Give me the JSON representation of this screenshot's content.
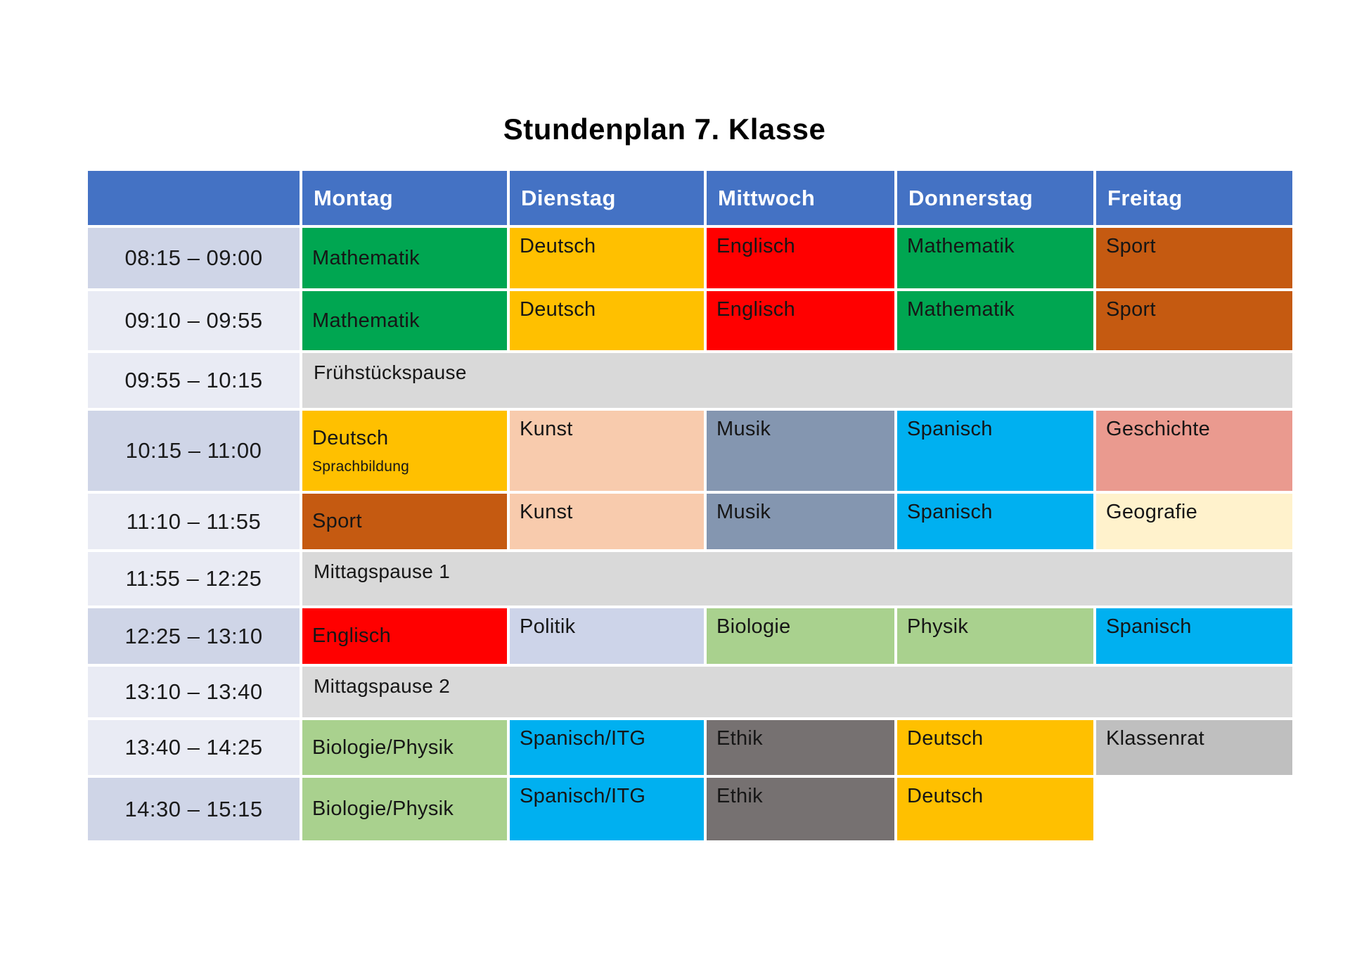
{
  "title": "Stundenplan 7. Klasse",
  "colors": {
    "header_bg": "#4472C4",
    "header_text": "#FFFFFF",
    "time_band": {
      "dark": "#CFD5E7",
      "light": "#E9EBF4"
    },
    "break_bg": "#D9D9D9",
    "subjects": {
      "mathematik": "#00A651",
      "deutsch": "#FFC000",
      "englisch": "#FF0000",
      "sport": "#C55A11",
      "kunst": "#F8CBAD",
      "musik": "#8496B0",
      "spanisch": "#00B0F0",
      "geschichte": "#EA9A8F",
      "geografie": "#FFF2CC",
      "politik": "#CDD4E9",
      "biologie_physik": "#A9D18E",
      "ethik": "#767171",
      "klassenrat": "#BFBFBF"
    }
  },
  "table": {
    "day_headers": [
      "Montag",
      "Dienstag",
      "Mittwoch",
      "Donnerstag",
      "Freitag"
    ],
    "rows": [
      {
        "time": "08:15 – 09:00",
        "band": "dark",
        "type": "lessons",
        "cells": [
          {
            "label": "Mathematik",
            "color": "#00A651",
            "valign": "middle"
          },
          {
            "label": "Deutsch",
            "color": "#FFC000"
          },
          {
            "label": "Englisch",
            "color": "#FF0000"
          },
          {
            "label": "Mathematik",
            "color": "#00A651"
          },
          {
            "label": "Sport",
            "color": "#C55A11"
          }
        ]
      },
      {
        "time": "09:10 – 09:55",
        "band": "light",
        "type": "lessons",
        "cells": [
          {
            "label": "Mathematik",
            "color": "#00A651",
            "valign": "middle"
          },
          {
            "label": "Deutsch",
            "color": "#FFC000"
          },
          {
            "label": "Englisch",
            "color": "#FF0000"
          },
          {
            "label": "Mathematik",
            "color": "#00A651"
          },
          {
            "label": "Sport",
            "color": "#C55A11"
          }
        ]
      },
      {
        "time": "09:55 – 10:15",
        "band": "light",
        "type": "break",
        "label": "Frühstückspause"
      },
      {
        "time": "10:15 – 11:00",
        "band": "dark",
        "type": "lessons",
        "cells": [
          {
            "label": "Deutsch",
            "sub": "Sprachbildung",
            "color": "#FFC000",
            "valign": "middle"
          },
          {
            "label": "Kunst",
            "color": "#F8CBAD"
          },
          {
            "label": "Musik",
            "color": "#8496B0"
          },
          {
            "label": "Spanisch",
            "color": "#00B0F0"
          },
          {
            "label": "Geschichte",
            "color": "#EA9A8F"
          }
        ]
      },
      {
        "time": "11:10 – 11:55",
        "band": "light",
        "type": "lessons",
        "cells": [
          {
            "label": "Sport",
            "color": "#C55A11",
            "valign": "middle"
          },
          {
            "label": "Kunst",
            "color": "#F8CBAD"
          },
          {
            "label": "Musik",
            "color": "#8496B0"
          },
          {
            "label": "Spanisch",
            "color": "#00B0F0"
          },
          {
            "label": "Geografie",
            "color": "#FFF2CC"
          }
        ]
      },
      {
        "time": "11:55 – 12:25",
        "band": "light",
        "type": "break",
        "label": "Mittagspause 1"
      },
      {
        "time": "12:25 – 13:10",
        "band": "dark",
        "type": "lessons",
        "cells": [
          {
            "label": "Englisch",
            "color": "#FF0000",
            "valign": "middle"
          },
          {
            "label": "Politik",
            "color": "#CDD4E9"
          },
          {
            "label": "Biologie",
            "color": "#A9D18E"
          },
          {
            "label": "Physik",
            "color": "#A9D18E"
          },
          {
            "label": "Spanisch",
            "color": "#00B0F0"
          }
        ]
      },
      {
        "time": "13:10 – 13:40",
        "band": "light",
        "type": "break",
        "label": "Mittagspause 2"
      },
      {
        "time": "13:40 – 14:25",
        "band": "light",
        "type": "lessons",
        "cells": [
          {
            "label": "Biologie/Physik",
            "color": "#A9D18E",
            "valign": "middle"
          },
          {
            "label": "Spanisch/ITG",
            "color": "#00B0F0"
          },
          {
            "label": "Ethik",
            "color": "#767171"
          },
          {
            "label": "Deutsch",
            "color": "#FFC000"
          },
          {
            "label": "Klassenrat",
            "color": "#BFBFBF"
          }
        ]
      },
      {
        "time": "14:30 – 15:15",
        "band": "dark",
        "type": "lessons",
        "cells": [
          {
            "label": "Biologie/Physik",
            "color": "#A9D18E",
            "valign": "middle"
          },
          {
            "label": "Spanisch/ITG",
            "color": "#00B0F0"
          },
          {
            "label": "Ethik",
            "color": "#767171"
          },
          {
            "label": "Deutsch",
            "color": "#FFC000"
          },
          {
            "label": "",
            "color": null
          }
        ]
      }
    ]
  }
}
